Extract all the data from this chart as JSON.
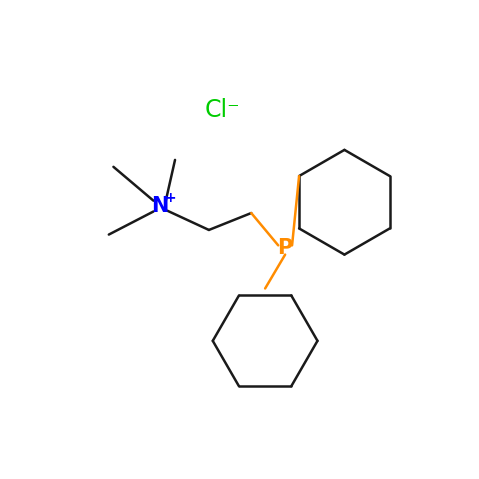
{
  "background_color": "#ffffff",
  "cl_label": "Cl⁻",
  "cl_color": "#00cc00",
  "cl_fontsize": 17,
  "n_color": "#0000ff",
  "n_fontsize": 15,
  "p_color": "#ff8c00",
  "p_fontsize": 15,
  "bond_color": "#1a1a1a",
  "bond_lw": 1.8
}
